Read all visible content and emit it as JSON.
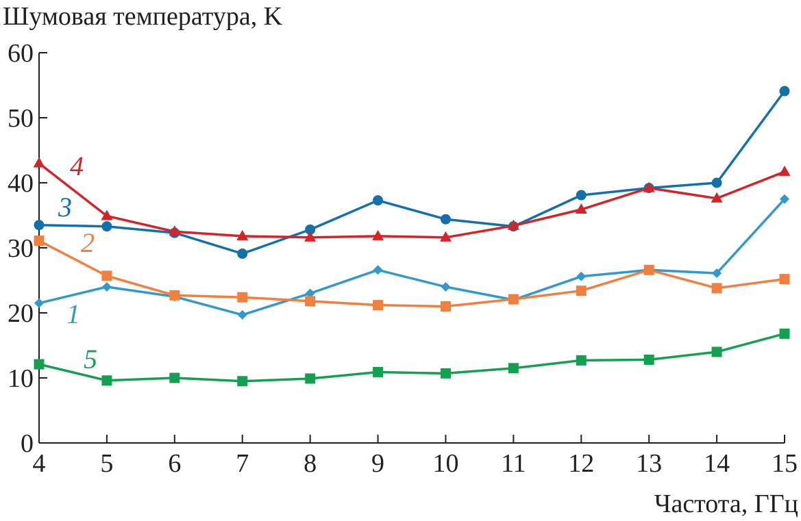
{
  "chart_data": {
    "type": "line",
    "ylabel": "Шумовая температура, K",
    "xlabel": "Частота, ГГц",
    "x": [
      4,
      5,
      6,
      7,
      8,
      9,
      10,
      11,
      12,
      13,
      14,
      15
    ],
    "x_ticks": [
      "4",
      "5",
      "6",
      "7",
      "8",
      "9",
      "10",
      "11",
      "12",
      "13",
      "14",
      "15"
    ],
    "y_ticks": [
      "0",
      "10",
      "20",
      "30",
      "40",
      "50",
      "60"
    ],
    "y_tick_values": [
      0,
      10,
      20,
      30,
      40,
      50,
      60
    ],
    "xlim": [
      4,
      15
    ],
    "ylim": [
      0,
      60
    ],
    "grid": false,
    "series": [
      {
        "label": "1",
        "color": "#3399cc",
        "marker": "diamond",
        "values": [
          21.5,
          24.0,
          22.5,
          19.7,
          23.0,
          26.6,
          24.0,
          22.0,
          25.6,
          26.6,
          26.1,
          37.5
        ]
      },
      {
        "label": "2",
        "color": "#f08040",
        "marker": "square",
        "values": [
          31.1,
          25.7,
          22.7,
          22.4,
          21.8,
          21.2,
          21.0,
          22.1,
          23.4,
          26.6,
          23.8,
          25.2
        ]
      },
      {
        "label": "3",
        "color": "#1470aa",
        "marker": "circle",
        "values": [
          33.5,
          33.3,
          32.3,
          29.1,
          32.8,
          37.3,
          34.4,
          33.3,
          38.1,
          39.2,
          40.0,
          54.1
        ]
      },
      {
        "label": "4",
        "color": "#d42428",
        "marker": "triangle",
        "values": [
          43.0,
          34.9,
          32.5,
          31.8,
          31.6,
          31.8,
          31.6,
          33.4,
          35.9,
          39.2,
          37.6,
          41.7
        ]
      },
      {
        "label": "5",
        "color": "#14a050",
        "marker": "square",
        "values": [
          12.1,
          9.6,
          10.0,
          9.5,
          9.9,
          10.9,
          10.7,
          11.5,
          12.7,
          12.8,
          14.0,
          16.8
        ]
      }
    ]
  }
}
